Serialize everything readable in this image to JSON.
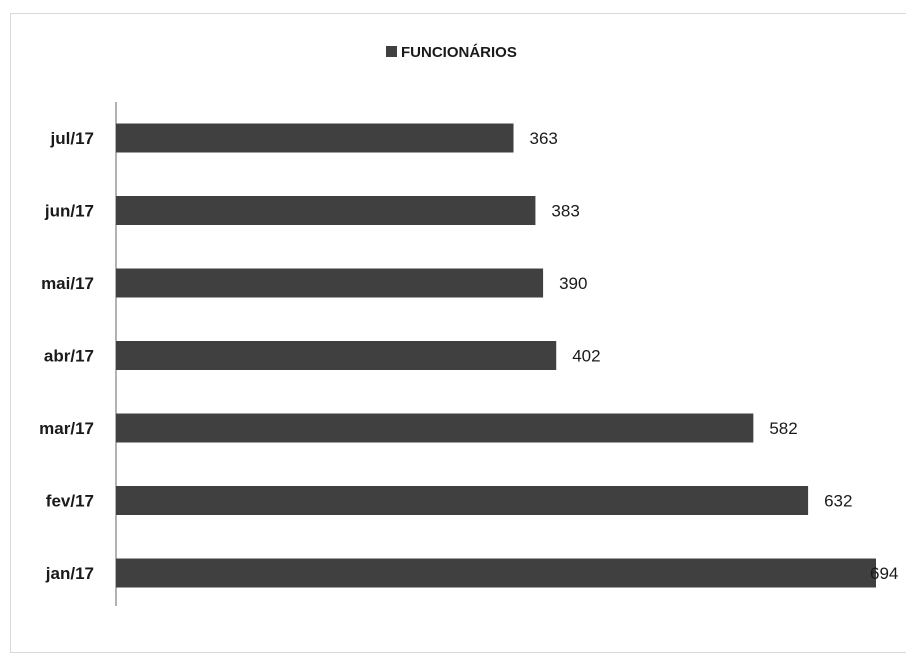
{
  "chart_data": {
    "type": "bar",
    "orientation": "horizontal",
    "categories": [
      "jul/17",
      "jun/17",
      "mai/17",
      "abr/17",
      "mar/17",
      "fev/17",
      "jan/17"
    ],
    "series": [
      {
        "name": "FUNCIONÁRIOS",
        "values": [
          363,
          383,
          390,
          402,
          582,
          632,
          694
        ],
        "color": "#404040"
      }
    ],
    "title": "",
    "xlabel": "",
    "ylabel": "",
    "xlim": [
      0,
      694
    ],
    "grid": false,
    "legend": "top-center",
    "data_labels": true
  }
}
